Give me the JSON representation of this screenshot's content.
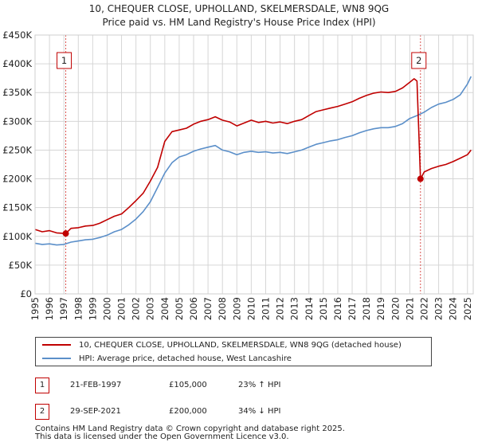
{
  "title": {
    "line1": "10, CHEQUER CLOSE, UPHOLLAND, SKELMERSDALE, WN8 9QG",
    "line2": "Price paid vs. HM Land Registry's House Price Index (HPI)"
  },
  "chart_data": {
    "type": "line",
    "title": "10, CHEQUER CLOSE, UPHOLLAND, SKELMERSDALE, WN8 9QG — Price paid vs. HM Land Registry's House Price Index (HPI)",
    "x_range": [
      1995,
      2025.4
    ],
    "ylim": [
      0,
      450000
    ],
    "x_ticks": [
      "1995",
      "1996",
      "1997",
      "1998",
      "1999",
      "2000",
      "2001",
      "2002",
      "2003",
      "2004",
      "2005",
      "2006",
      "2007",
      "2008",
      "2009",
      "2010",
      "2011",
      "2012",
      "2013",
      "2014",
      "2015",
      "2016",
      "2017",
      "2018",
      "2019",
      "2020",
      "2021",
      "2022",
      "2023",
      "2024",
      "2025"
    ],
    "y_ticks": [
      {
        "value": 0,
        "label": "£0"
      },
      {
        "value": 50000,
        "label": "£50K"
      },
      {
        "value": 100000,
        "label": "£100K"
      },
      {
        "value": 150000,
        "label": "£150K"
      },
      {
        "value": 200000,
        "label": "£200K"
      },
      {
        "value": 250000,
        "label": "£250K"
      },
      {
        "value": 300000,
        "label": "£300K"
      },
      {
        "value": 350000,
        "label": "£350K"
      },
      {
        "value": 400000,
        "label": "£400K"
      },
      {
        "value": 450000,
        "label": "£450K"
      }
    ],
    "grid": true,
    "series": [
      {
        "name": "10, CHEQUER CLOSE, UPHOLLAND, SKELMERSDALE, WN8 9QG (detached house)",
        "color": "#c00000",
        "x": [
          1995.0,
          1995.5,
          1996.0,
          1996.5,
          1997.13,
          1997.5,
          1998.0,
          1998.5,
          1999.0,
          1999.5,
          2000.0,
          2000.5,
          2001.0,
          2001.5,
          2002.0,
          2002.5,
          2003.0,
          2003.5,
          2004.0,
          2004.5,
          2005.0,
          2005.5,
          2006.0,
          2006.5,
          2007.0,
          2007.5,
          2008.0,
          2008.5,
          2009.0,
          2009.5,
          2010.0,
          2010.5,
          2011.0,
          2011.5,
          2012.0,
          2012.5,
          2013.0,
          2013.5,
          2014.0,
          2014.5,
          2015.0,
          2015.5,
          2016.0,
          2016.5,
          2017.0,
          2017.5,
          2018.0,
          2018.5,
          2019.0,
          2019.5,
          2020.0,
          2020.5,
          2021.0,
          2021.3,
          2021.5,
          2021.74,
          2022.0,
          2022.5,
          2023.0,
          2023.5,
          2024.0,
          2024.5,
          2025.0,
          2025.25
        ],
        "y": [
          112000,
          108000,
          110000,
          106000,
          105000,
          114000,
          115000,
          118000,
          119000,
          123000,
          129000,
          135000,
          139000,
          150000,
          162000,
          175000,
          196000,
          220000,
          265000,
          282000,
          285000,
          288000,
          295000,
          300000,
          303000,
          308000,
          302000,
          299000,
          292000,
          297000,
          302000,
          298000,
          300000,
          297000,
          299000,
          296000,
          300000,
          303000,
          310000,
          317000,
          320000,
          323000,
          326000,
          330000,
          334000,
          340000,
          345000,
          349000,
          351000,
          350000,
          352000,
          358000,
          368000,
          374000,
          370000,
          200000,
          212000,
          218000,
          222000,
          225000,
          230000,
          236000,
          242000,
          250000
        ]
      },
      {
        "name": "HPI: Average price, detached house, West Lancashire",
        "color": "#5b8fc9",
        "x": [
          1995.0,
          1995.5,
          1996.0,
          1996.5,
          1997.0,
          1997.5,
          1998.0,
          1998.5,
          1999.0,
          1999.5,
          2000.0,
          2000.5,
          2001.0,
          2001.5,
          2002.0,
          2002.5,
          2003.0,
          2003.5,
          2004.0,
          2004.5,
          2005.0,
          2005.5,
          2006.0,
          2006.5,
          2007.0,
          2007.5,
          2008.0,
          2008.5,
          2009.0,
          2009.5,
          2010.0,
          2010.5,
          2011.0,
          2011.5,
          2012.0,
          2012.5,
          2013.0,
          2013.5,
          2014.0,
          2014.5,
          2015.0,
          2015.5,
          2016.0,
          2016.5,
          2017.0,
          2017.5,
          2018.0,
          2018.5,
          2019.0,
          2019.5,
          2020.0,
          2020.5,
          2021.0,
          2021.5,
          2022.0,
          2022.5,
          2023.0,
          2023.5,
          2024.0,
          2024.5,
          2025.0,
          2025.25
        ],
        "y": [
          88000,
          86000,
          87000,
          85000,
          86000,
          90000,
          92000,
          94000,
          95000,
          98000,
          102000,
          108000,
          112000,
          120000,
          130000,
          143000,
          160000,
          185000,
          210000,
          228000,
          238000,
          242000,
          248000,
          252000,
          255000,
          258000,
          250000,
          247000,
          242000,
          246000,
          248000,
          246000,
          247000,
          245000,
          246000,
          244000,
          247000,
          250000,
          255000,
          260000,
          263000,
          266000,
          268000,
          272000,
          275000,
          280000,
          284000,
          287000,
          289000,
          289000,
          291000,
          296000,
          305000,
          310000,
          316000,
          324000,
          330000,
          333000,
          338000,
          346000,
          365000,
          378000
        ]
      }
    ],
    "markers": [
      {
        "label": "1",
        "x": 1997.13,
        "y": 105000
      },
      {
        "label": "2",
        "x": 2021.74,
        "y": 200000
      }
    ]
  },
  "legend": [
    {
      "label": "10, CHEQUER CLOSE, UPHOLLAND, SKELMERSDALE, WN8 9QG (detached house)",
      "color": "#c00000"
    },
    {
      "label": "HPI: Average price, detached house, West Lancashire",
      "color": "#5b8fc9"
    }
  ],
  "transactions": [
    {
      "num": "1",
      "date": "21-FEB-1997",
      "price": "£105,000",
      "hpi": "23% ↑ HPI"
    },
    {
      "num": "2",
      "date": "29-SEP-2021",
      "price": "£200,000",
      "hpi": "34% ↓ HPI"
    }
  ],
  "footer": {
    "line1": "Contains HM Land Registry data © Crown copyright and database right 2025.",
    "line2": "This data is licensed under the Open Government Licence v3.0."
  },
  "colors": {
    "property": "#c00000",
    "hpi": "#5b8fc9",
    "grid": "#d6d6d6",
    "marker_line": "#d9534f"
  }
}
